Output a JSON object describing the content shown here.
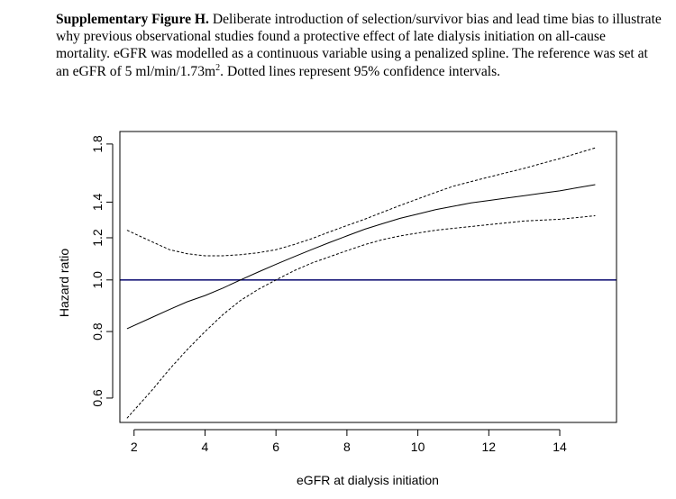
{
  "caption": {
    "bold_lead": "Supplementary Figure H.",
    "text_before_sup": " Deliberate introduction of selection/survivor bias and lead time bias to illustrate why previous observational studies found a protective effect of late dialysis initiation on all-cause mortality. eGFR was modelled as a continuous variable using a penalized spline. The reference was set at an eGFR of 5 ml/min/1.73m",
    "superscript": "2",
    "text_after_sup": ". Dotted lines represent 95% confidence intervals."
  },
  "chart_data": {
    "type": "line",
    "title": "",
    "xlabel": "eGFR at dialysis initiation",
    "ylabel": "Hazard ratio",
    "x_scale": "linear",
    "y_scale": "log",
    "xlim": [
      1.6,
      15.6
    ],
    "ylim": [
      0.54,
      1.9
    ],
    "x_ticks": [
      2,
      4,
      6,
      8,
      10,
      12,
      14
    ],
    "x_tick_labels": [
      "2",
      "4",
      "6",
      "8",
      "10",
      "12",
      "14"
    ],
    "y_ticks": [
      0.6,
      0.8,
      1.0,
      1.2,
      1.4,
      1.8
    ],
    "y_tick_labels": [
      "0.6",
      "0.8",
      "1.0",
      "1.2",
      "1.4",
      "1.8"
    ],
    "reference_line": {
      "y": 1.0,
      "color": "#1a1a7a"
    },
    "x": [
      1.8,
      2.5,
      3,
      3.5,
      4,
      4.5,
      5,
      5.5,
      6,
      6.5,
      7,
      7.5,
      8,
      8.5,
      9,
      9.5,
      10,
      10.5,
      11,
      11.5,
      12,
      12.5,
      13,
      13.5,
      14,
      14.5,
      15
    ],
    "series": [
      {
        "name": "Hazard ratio",
        "style": "solid",
        "values": [
          0.81,
          0.85,
          0.88,
          0.91,
          0.935,
          0.965,
          1.0,
          1.035,
          1.07,
          1.105,
          1.14,
          1.175,
          1.21,
          1.245,
          1.275,
          1.305,
          1.33,
          1.355,
          1.375,
          1.395,
          1.41,
          1.425,
          1.44,
          1.455,
          1.47,
          1.49,
          1.51
        ]
      },
      {
        "name": "Upper 95% CI",
        "style": "dashed",
        "values": [
          1.24,
          1.18,
          1.14,
          1.12,
          1.11,
          1.11,
          1.115,
          1.125,
          1.14,
          1.165,
          1.195,
          1.23,
          1.265,
          1.3,
          1.34,
          1.38,
          1.42,
          1.46,
          1.5,
          1.53,
          1.56,
          1.59,
          1.62,
          1.655,
          1.69,
          1.73,
          1.77
        ]
      },
      {
        "name": "Lower 95% CI",
        "style": "dashed",
        "values": [
          0.55,
          0.62,
          0.68,
          0.74,
          0.8,
          0.86,
          0.915,
          0.96,
          1.0,
          1.04,
          1.075,
          1.105,
          1.135,
          1.165,
          1.19,
          1.21,
          1.225,
          1.24,
          1.25,
          1.26,
          1.27,
          1.28,
          1.29,
          1.295,
          1.3,
          1.31,
          1.32
        ]
      }
    ]
  }
}
